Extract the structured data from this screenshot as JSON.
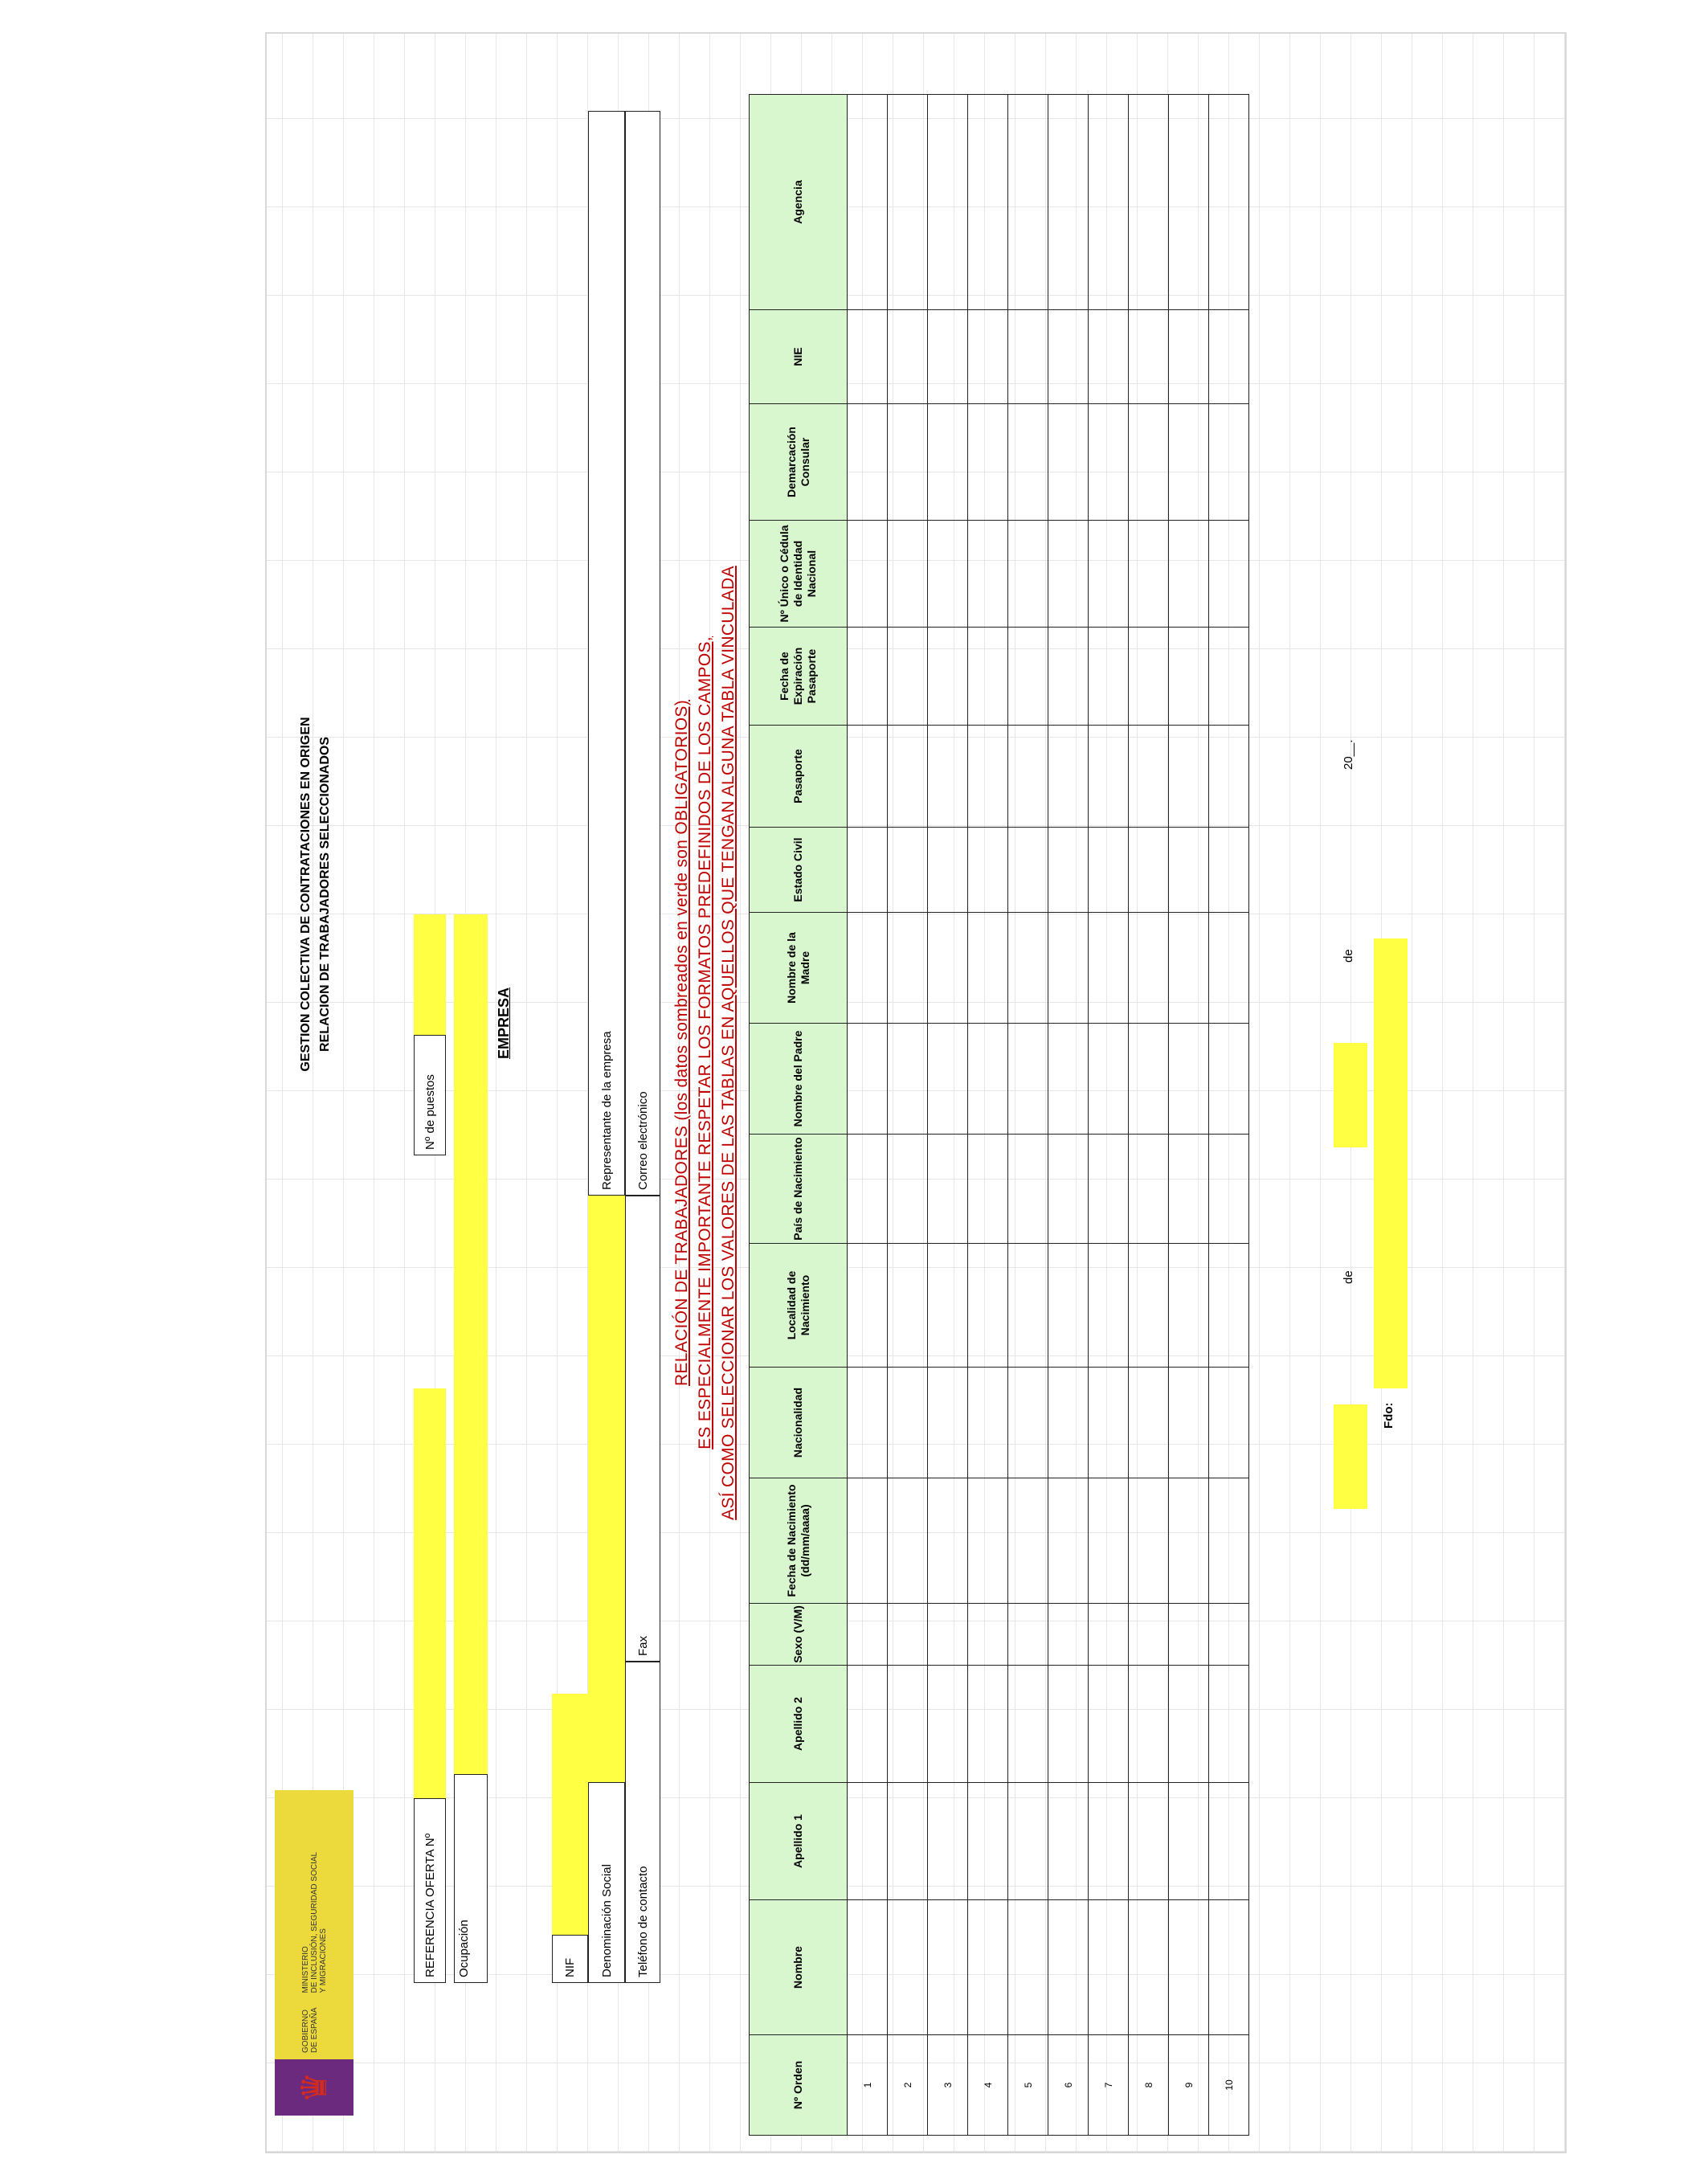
{
  "header": {
    "logo_text_left": "GOBIERNO\nDE ESPAÑA",
    "logo_text_right": "MINISTERIO\nDE INCLUSIÓN, SEGURIDAD SOCIAL\nY MIGRACIONES",
    "logo_icon": "spain-coat-of-arms-icon",
    "title_1": "GESTION COLECTIVA DE CONTRATACIONES EN ORIGEN",
    "title_2": "RELACION DE TRABAJADORES SELECCIONADOS"
  },
  "offer": {
    "referencia_label": "REFERENCIA OFERTA Nº",
    "referencia_value": "",
    "puestos_label": "Nº de puestos",
    "puestos_value": "",
    "ocupacion_label": "Ocupación",
    "ocupacion_value": ""
  },
  "empresa": {
    "heading": "EMPRESA",
    "nif_label": "NIF",
    "nif_value": "",
    "denominacion_label": "Denominación Social",
    "denominacion_value": "",
    "representante_label": "Representante de la empresa",
    "telefono_label": "Teléfono de contacto",
    "fax_label": "Fax",
    "correo_label": "Correo electrónico"
  },
  "notice": {
    "line_1": "RELACIÓN DE TRABAJADORES  (los datos sombreados en verde son OBLIGATORIOS)",
    "line_2": "ES ESPECIALMENTE IMPORTANTE RESPETAR LOS FORMATOS PREDEFINIDOS DE LOS CAMPOS,",
    "line_3": "ASÍ COMO SELECCIONAR LOS VALORES DE LAS TABLAS EN AQUELLOS QUE TENGAN ALGUNA TABLA VINCULADA"
  },
  "table": {
    "columns": [
      "Nº Orden",
      "Nombre",
      "Apellido 1",
      "Apellido 2",
      "Sexo (V/M)",
      "Fecha de Nacimiento (dd/mm/aaaa)",
      "Nacionalidad",
      "Localidad de Nacimiento",
      "País de Nacimiento",
      "Nombre del Padre",
      "Nombre de la Madre",
      "Estado Civil",
      "Pasaporte",
      "Fecha de Expiración Pasaporte",
      "Nº Único o Cédula de Identidad Nacional",
      "Demarcación Consular",
      "NIE",
      "Agencia"
    ],
    "rows": [
      "1",
      "2",
      "3",
      "4",
      "5",
      "6",
      "7",
      "8",
      "9",
      "10"
    ]
  },
  "footer": {
    "de_1": "de",
    "de_2": "de",
    "year": "20__.",
    "fdo": "Fdo:"
  },
  "colors": {
    "yellow_fill": "#ffff44",
    "green_header": "#d9f7cf",
    "notice_red": "#c00000",
    "logo_yellow": "#ecd93c",
    "logo_purple": "#6b2a7d"
  }
}
